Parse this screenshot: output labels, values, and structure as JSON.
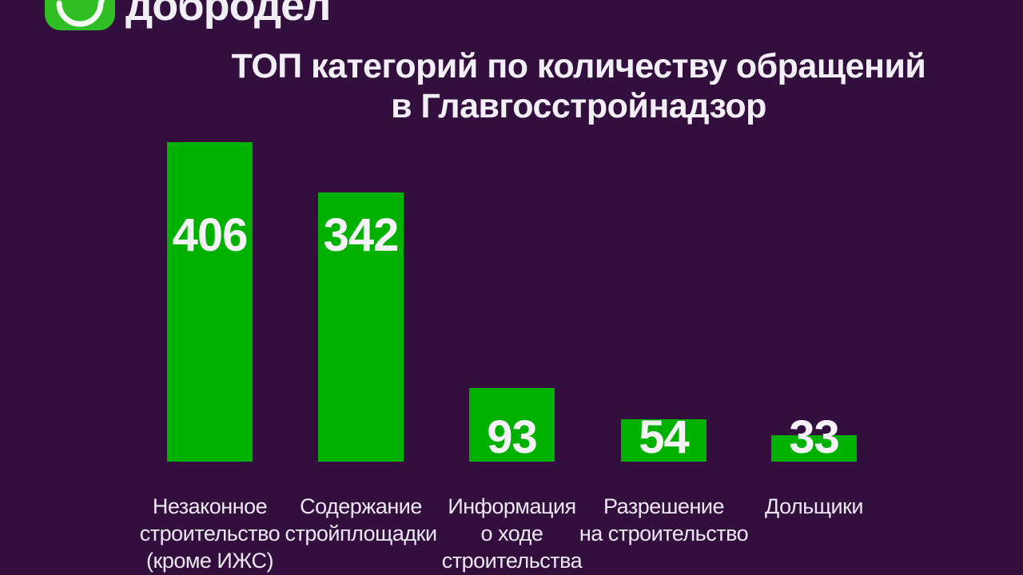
{
  "logo": {
    "brand": "добродел"
  },
  "title": {
    "line1": "ТОП категорий по количеству обращений",
    "line2": "в Главгосстройнадзор"
  },
  "colors": {
    "background": "#330F3E",
    "bar_green": "#00B100",
    "logo_green": "#2FBE23",
    "title_text": "#F3EFF6",
    "value_text": "#F6F3F8",
    "label_text": "#ECE7F2"
  },
  "chart_data": {
    "type": "bar",
    "title": "ТОП категорий по количеству обращений в Главгосстройнадзор",
    "categories": [
      "Незаконное строительство (кроме ИЖС)",
      "Содержание стройплощадки",
      "Информация о ходе строительства",
      "Разрешение на строительство",
      "Дольщики"
    ],
    "category_lines": [
      [
        "Незаконное",
        "строительство",
        "(кроме ИЖС)"
      ],
      [
        "Содержание",
        "стройплощадки"
      ],
      [
        "Информация",
        "о ходе",
        "строительства"
      ],
      [
        "Разрешение",
        "на строительство"
      ],
      [
        "Дольщики"
      ]
    ],
    "values": [
      406,
      342,
      93,
      54,
      33
    ],
    "bar_color": "#00B100",
    "value_labels_inside": true,
    "xlabel": "",
    "ylabel": "",
    "ylim": [
      0,
      420
    ],
    "grid": false,
    "legend": false
  }
}
